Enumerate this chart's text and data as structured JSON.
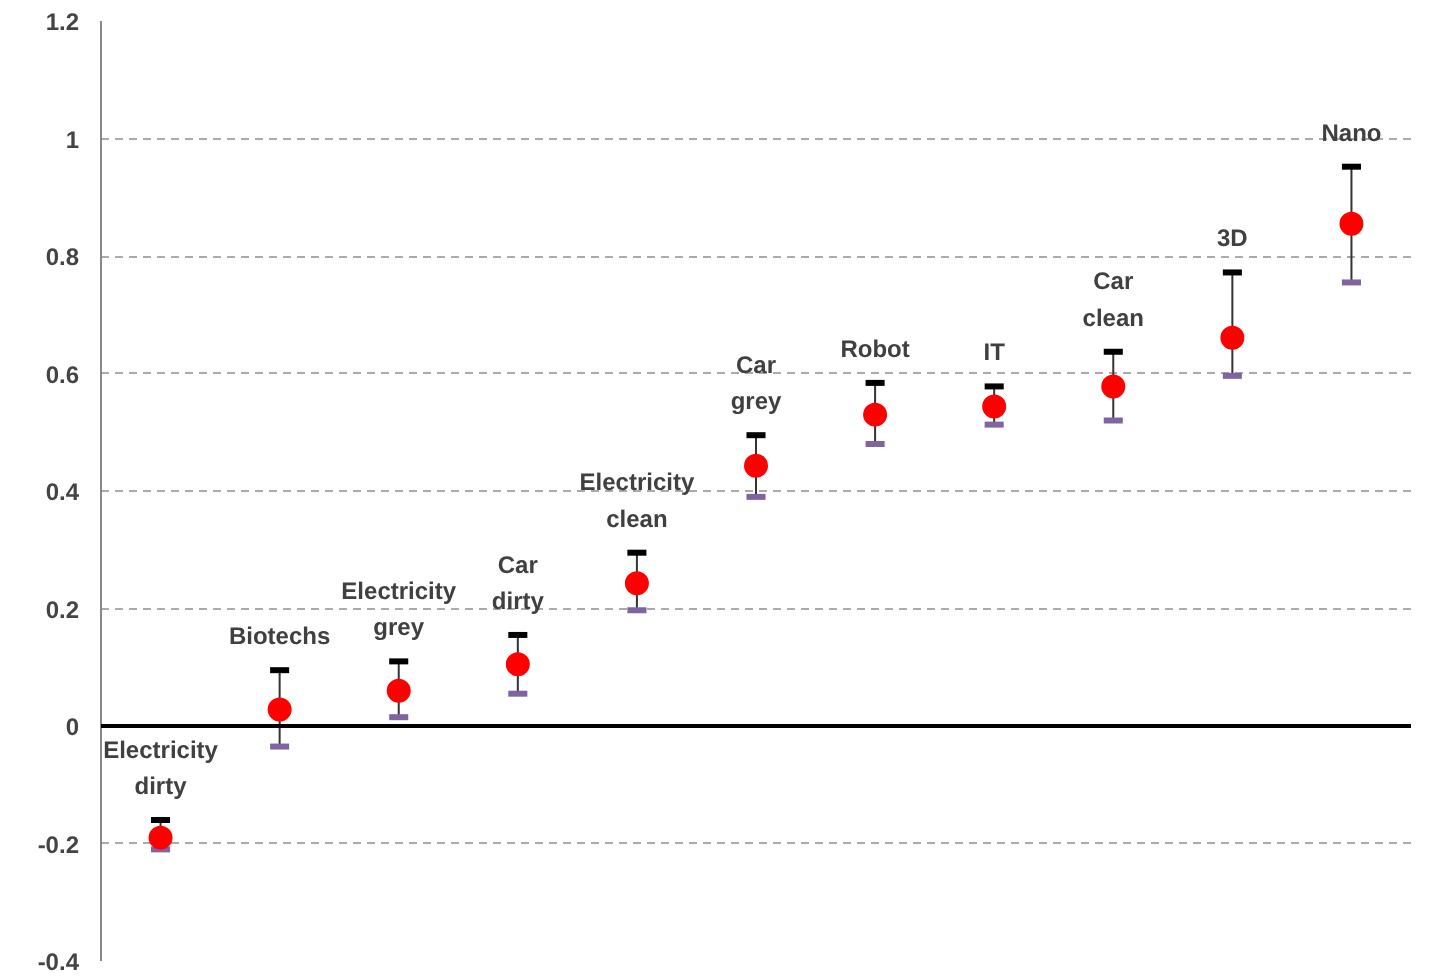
{
  "chart_data": {
    "type": "scatter",
    "categories": [
      null,
      null,
      null,
      null,
      null,
      null,
      null,
      null,
      null,
      null,
      null
    ],
    "series": [
      {
        "color": "#ff0000",
        "values": [
          -0.19,
          0.028,
          0.06,
          0.105,
          0.243,
          0.443,
          0.53,
          0.544,
          0.578,
          0.661,
          0.855
        ],
        "errors": [
          [
            -0.21,
            -0.16
          ],
          [
            -0.035,
            0.095
          ],
          [
            0.015,
            0.11
          ],
          [
            0.055,
            0.155
          ],
          [
            0.197,
            0.295
          ],
          [
            0.39,
            0.495
          ],
          [
            0.48,
            0.584
          ],
          [
            0.513,
            0.578
          ],
          [
            0.52,
            0.637
          ],
          [
            0.596,
            0.772
          ],
          [
            0.755,
            0.952
          ]
        ]
      }
    ],
    "annotations": [
      {
        "text": "Electricity dirty",
        "y": -0.16
      },
      {
        "text": "Biotechs",
        "y": 0.095
      },
      {
        "text": "Electricity grey",
        "y": 0.11
      },
      {
        "text": "Car dirty",
        "y": 0.155
      },
      {
        "text": "Electricity clean",
        "y": 0.295
      },
      {
        "text": "Car grey",
        "y": 0.495
      },
      {
        "text": "Robot",
        "y": 0.584
      },
      {
        "text": "IT",
        "y": 0.578
      },
      {
        "text": "Car clean",
        "y": 0.637
      },
      {
        "text": "3D",
        "y": 0.772
      },
      {
        "text": "Nano",
        "y": 0.952
      }
    ],
    "ylim": [
      -0.4,
      1.2
    ],
    "yticks": [
      -0.4,
      -0.2,
      0,
      0.2,
      0.4,
      0.6,
      0.8,
      1,
      1.2
    ],
    "grid": "y",
    "marker": "circle"
  }
}
